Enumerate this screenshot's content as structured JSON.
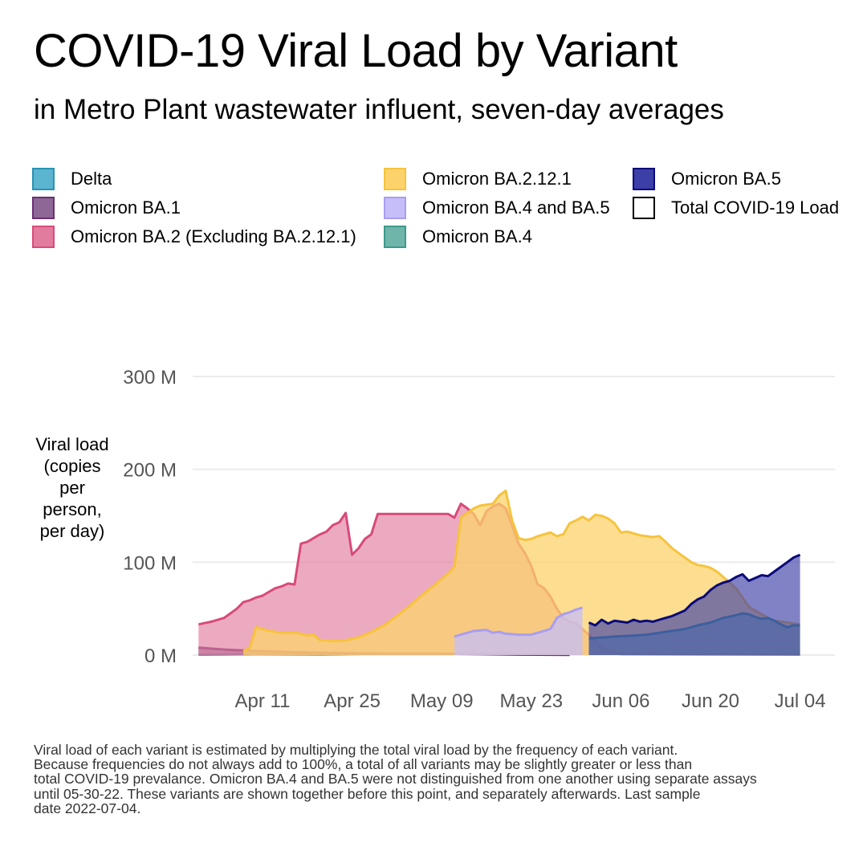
{
  "title": "COVID-19 Viral Load by Variant",
  "subtitle": "in Metro Plant wastewater influent, seven-day averages",
  "legend": [
    {
      "label": "Delta",
      "fill": "#5BB4D0",
      "stroke": "#2A93B4"
    },
    {
      "label": "Omicron BA.1",
      "fill": "#8E6796",
      "stroke": "#6A2F72"
    },
    {
      "label": "Omicron BA.2 (Excluding BA.2.12.1)",
      "fill": "#E27C9E",
      "stroke": "#D84A7A"
    },
    {
      "label": "Omicron BA.2.12.1",
      "fill": "#FCD36B",
      "stroke": "#F6C33D"
    },
    {
      "label": "Omicron BA.4 and BA.5",
      "fill": "#C6BEF8",
      "stroke": "#A99EF0"
    },
    {
      "label": "Omicron BA.4",
      "fill": "#70B5AA",
      "stroke": "#3C9A8B"
    },
    {
      "label": "Omicron BA.5",
      "fill": "#3D3FA8",
      "stroke": "#0A0A7A"
    },
    {
      "label": "Total COVID-19 Load",
      "fill": "#FFFFFF",
      "stroke": "#000000"
    }
  ],
  "y_axis_title": "Viral load\n(copies\nper\nperson,\nper day)",
  "footnote": "Viral load of each variant is estimated by multiplying the total viral load by the frequency of each variant.\nBecause frequencies do not always add to 100%, a total of all variants may be slightly greater or less than\ntotal COVID-19 prevalance. Omicron BA.4 and BA.5 were not distinguished from one another using separate assays\nuntil 05-30-22. These variants are shown together before this point, and separately afterwards. Last sample\ndate 2022-07-04.",
  "chart_data": {
    "type": "area",
    "ylabel": "Viral load\n(copies\nper\nperson,\nper day)",
    "xlabel": "",
    "x_ticks": [
      "Apr 11",
      "Apr 25",
      "May 09",
      "May 23",
      "Jun 06",
      "Jun 20",
      "Jul 04"
    ],
    "x_tick_dates": [
      "2022-04-11",
      "2022-04-25",
      "2022-05-09",
      "2022-05-23",
      "2022-06-06",
      "2022-06-20",
      "2022-07-04"
    ],
    "y_ticks": [
      0,
      100,
      200,
      300
    ],
    "y_tick_labels": [
      "0 M",
      "100 M",
      "200 M",
      "300 M"
    ],
    "ylim": [
      0,
      300
    ],
    "y_unit": "M",
    "grid": true,
    "legend_position": "top",
    "series": [
      {
        "name": "Delta",
        "fill": "#5BB4D0",
        "stroke": "#2A93B4",
        "opacity": 0.75,
        "points": [
          [
            "2022-04-01",
            0.5
          ],
          [
            "2022-04-10",
            1.0
          ],
          [
            "2022-04-20",
            0.8
          ],
          [
            "2022-04-29",
            1.5
          ]
        ]
      },
      {
        "name": "Omicron BA.1",
        "fill": "#8E6796",
        "stroke": "#6A2F72",
        "opacity": 0.75,
        "points": [
          [
            "2022-04-01",
            8
          ],
          [
            "2022-04-05",
            6
          ],
          [
            "2022-04-08",
            5
          ],
          [
            "2022-04-12",
            4
          ],
          [
            "2022-04-16",
            3
          ],
          [
            "2022-04-20",
            2.5
          ],
          [
            "2022-04-25",
            2
          ],
          [
            "2022-05-01",
            1.5
          ],
          [
            "2022-05-08",
            1.5
          ],
          [
            "2022-05-15",
            1
          ],
          [
            "2022-05-21",
            0.5
          ],
          [
            "2022-05-29",
            0.3
          ]
        ]
      },
      {
        "name": "Omicron BA.2 (Excluding BA.2.12.1)",
        "fill": "#E27C9E",
        "stroke": "#D84A7A",
        "opacity": 0.65,
        "points": [
          [
            "2022-04-01",
            33
          ],
          [
            "2022-04-03",
            36
          ],
          [
            "2022-04-05",
            40
          ],
          [
            "2022-04-06",
            45
          ],
          [
            "2022-04-07",
            50
          ],
          [
            "2022-04-08",
            57
          ],
          [
            "2022-04-09",
            59
          ],
          [
            "2022-04-10",
            62
          ],
          [
            "2022-04-11",
            64
          ],
          [
            "2022-04-12",
            68
          ],
          [
            "2022-04-13",
            72
          ],
          [
            "2022-04-14",
            74
          ],
          [
            "2022-04-15",
            77
          ],
          [
            "2022-04-16",
            76
          ],
          [
            "2022-04-17",
            120
          ],
          [
            "2022-04-18",
            122
          ],
          [
            "2022-04-20",
            130
          ],
          [
            "2022-04-21",
            133
          ],
          [
            "2022-04-22",
            140
          ],
          [
            "2022-04-23",
            143
          ],
          [
            "2022-04-24",
            153
          ],
          [
            "2022-04-25",
            108
          ],
          [
            "2022-04-26",
            115
          ],
          [
            "2022-04-27",
            125
          ],
          [
            "2022-04-28",
            130
          ],
          [
            "2022-04-29",
            152
          ],
          [
            "2022-05-10",
            152
          ],
          [
            "2022-05-11",
            148
          ],
          [
            "2022-05-12",
            163
          ],
          [
            "2022-05-13",
            158
          ],
          [
            "2022-05-14",
            152
          ],
          [
            "2022-05-15",
            140
          ],
          [
            "2022-05-16",
            155
          ],
          [
            "2022-05-17",
            160
          ],
          [
            "2022-05-18",
            163
          ],
          [
            "2022-05-19",
            158
          ],
          [
            "2022-05-20",
            140
          ],
          [
            "2022-05-21",
            120
          ],
          [
            "2022-05-22",
            110
          ],
          [
            "2022-05-23",
            96
          ],
          [
            "2022-05-24",
            76
          ],
          [
            "2022-05-25",
            72
          ],
          [
            "2022-05-26",
            63
          ],
          [
            "2022-05-27",
            50
          ],
          [
            "2022-05-28",
            40
          ],
          [
            "2022-05-29",
            36
          ],
          [
            "2022-05-30",
            34
          ],
          [
            "2022-05-31",
            28
          ],
          [
            "2022-06-01",
            22
          ],
          [
            "2022-06-02",
            15
          ],
          [
            "2022-06-03",
            8
          ],
          [
            "2022-06-04",
            5
          ],
          [
            "2022-06-05",
            2
          ],
          [
            "2022-06-06",
            1
          ],
          [
            "2022-07-04",
            0.5
          ]
        ]
      },
      {
        "name": "Omicron BA.2.12.1",
        "fill": "#FCD36B",
        "stroke": "#F6C33D",
        "opacity": 0.75,
        "points": [
          [
            "2022-04-08",
            4
          ],
          [
            "2022-04-09",
            8
          ],
          [
            "2022-04-10",
            30
          ],
          [
            "2022-04-11",
            28
          ],
          [
            "2022-04-12",
            26
          ],
          [
            "2022-04-14",
            24
          ],
          [
            "2022-04-16",
            24
          ],
          [
            "2022-04-17",
            23
          ],
          [
            "2022-04-18",
            21
          ],
          [
            "2022-04-19",
            22
          ],
          [
            "2022-04-20",
            16
          ],
          [
            "2022-04-22",
            15
          ],
          [
            "2022-04-24",
            16
          ],
          [
            "2022-04-26",
            19
          ],
          [
            "2022-04-28",
            25
          ],
          [
            "2022-04-30",
            32
          ],
          [
            "2022-05-02",
            42
          ],
          [
            "2022-05-04",
            53
          ],
          [
            "2022-05-06",
            65
          ],
          [
            "2022-05-08",
            76
          ],
          [
            "2022-05-10",
            88
          ],
          [
            "2022-05-11",
            95
          ],
          [
            "2022-05-12",
            148
          ],
          [
            "2022-05-14",
            158
          ],
          [
            "2022-05-15",
            161
          ],
          [
            "2022-05-17",
            163
          ],
          [
            "2022-05-18",
            172
          ],
          [
            "2022-05-19",
            177
          ],
          [
            "2022-05-20",
            145
          ],
          [
            "2022-05-21",
            126
          ],
          [
            "2022-05-22",
            124
          ],
          [
            "2022-05-23",
            125
          ],
          [
            "2022-05-24",
            128
          ],
          [
            "2022-05-25",
            130
          ],
          [
            "2022-05-26",
            132
          ],
          [
            "2022-05-27",
            128
          ],
          [
            "2022-05-28",
            130
          ],
          [
            "2022-05-29",
            142
          ],
          [
            "2022-05-30",
            145
          ],
          [
            "2022-05-31",
            149
          ],
          [
            "2022-06-01",
            145
          ],
          [
            "2022-06-02",
            151
          ],
          [
            "2022-06-03",
            150
          ],
          [
            "2022-06-04",
            147
          ],
          [
            "2022-06-05",
            142
          ],
          [
            "2022-06-06",
            132
          ],
          [
            "2022-06-07",
            133
          ],
          [
            "2022-06-08",
            131
          ],
          [
            "2022-06-09",
            129
          ],
          [
            "2022-06-10",
            128
          ],
          [
            "2022-06-11",
            127
          ],
          [
            "2022-06-12",
            128
          ],
          [
            "2022-06-13",
            122
          ],
          [
            "2022-06-14",
            115
          ],
          [
            "2022-06-15",
            110
          ],
          [
            "2022-06-16",
            105
          ],
          [
            "2022-06-17",
            100
          ],
          [
            "2022-06-18",
            97
          ],
          [
            "2022-06-19",
            96
          ],
          [
            "2022-06-20",
            94
          ],
          [
            "2022-06-21",
            90
          ],
          [
            "2022-06-22",
            84
          ],
          [
            "2022-06-23",
            78
          ],
          [
            "2022-06-24",
            72
          ],
          [
            "2022-06-25",
            62
          ],
          [
            "2022-06-26",
            52
          ],
          [
            "2022-06-27",
            48
          ],
          [
            "2022-06-28",
            44
          ],
          [
            "2022-06-29",
            40
          ],
          [
            "2022-06-30",
            37
          ],
          [
            "2022-07-01",
            36
          ],
          [
            "2022-07-02",
            35
          ],
          [
            "2022-07-04",
            33
          ]
        ]
      },
      {
        "name": "Omicron BA.4 and BA.5",
        "fill": "#C6BEF8",
        "stroke": "#A99EF0",
        "opacity": 0.75,
        "points": [
          [
            "2022-05-11",
            20
          ],
          [
            "2022-05-12",
            22
          ],
          [
            "2022-05-14",
            26
          ],
          [
            "2022-05-16",
            27
          ],
          [
            "2022-05-17",
            24
          ],
          [
            "2022-05-18",
            25
          ],
          [
            "2022-05-19",
            23
          ],
          [
            "2022-05-21",
            22
          ],
          [
            "2022-05-23",
            22
          ],
          [
            "2022-05-24",
            24
          ],
          [
            "2022-05-25",
            26
          ],
          [
            "2022-05-26",
            28
          ],
          [
            "2022-05-27",
            40
          ],
          [
            "2022-05-28",
            44
          ],
          [
            "2022-05-29",
            46
          ],
          [
            "2022-05-30",
            49
          ],
          [
            "2022-05-31",
            51
          ]
        ]
      },
      {
        "name": "Omicron BA.4",
        "fill": "#70B5AA",
        "stroke": "#3C9A8B",
        "opacity": 0.7,
        "points": [
          [
            "2022-06-01",
            18
          ],
          [
            "2022-06-05",
            20
          ],
          [
            "2022-06-08",
            21
          ],
          [
            "2022-06-10",
            22
          ],
          [
            "2022-06-12",
            24
          ],
          [
            "2022-06-14",
            26
          ],
          [
            "2022-06-16",
            28
          ],
          [
            "2022-06-18",
            32
          ],
          [
            "2022-06-20",
            35
          ],
          [
            "2022-06-22",
            40
          ],
          [
            "2022-06-24",
            43
          ],
          [
            "2022-06-25",
            45
          ],
          [
            "2022-06-26",
            44
          ],
          [
            "2022-06-27",
            41
          ],
          [
            "2022-06-28",
            39
          ],
          [
            "2022-06-29",
            40
          ],
          [
            "2022-06-30",
            37
          ],
          [
            "2022-07-01",
            33
          ],
          [
            "2022-07-02",
            30
          ],
          [
            "2022-07-03",
            32
          ],
          [
            "2022-07-04",
            32
          ]
        ]
      },
      {
        "name": "Omicron BA.5",
        "fill": "#3D3FA8",
        "stroke": "#0A0A7A",
        "opacity": 0.65,
        "points": [
          [
            "2022-06-01",
            35
          ],
          [
            "2022-06-02",
            32
          ],
          [
            "2022-06-03",
            38
          ],
          [
            "2022-06-04",
            34
          ],
          [
            "2022-06-05",
            37
          ],
          [
            "2022-06-06",
            36
          ],
          [
            "2022-06-07",
            35
          ],
          [
            "2022-06-08",
            38
          ],
          [
            "2022-06-09",
            36
          ],
          [
            "2022-06-10",
            37
          ],
          [
            "2022-06-11",
            36
          ],
          [
            "2022-06-12",
            38
          ],
          [
            "2022-06-13",
            40
          ],
          [
            "2022-06-14",
            42
          ],
          [
            "2022-06-15",
            45
          ],
          [
            "2022-06-16",
            48
          ],
          [
            "2022-06-17",
            55
          ],
          [
            "2022-06-18",
            60
          ],
          [
            "2022-06-19",
            63
          ],
          [
            "2022-06-20",
            70
          ],
          [
            "2022-06-21",
            75
          ],
          [
            "2022-06-22",
            78
          ],
          [
            "2022-06-23",
            80
          ],
          [
            "2022-06-24",
            84
          ],
          [
            "2022-06-25",
            87
          ],
          [
            "2022-06-26",
            80
          ],
          [
            "2022-06-27",
            83
          ],
          [
            "2022-06-28",
            86
          ],
          [
            "2022-06-29",
            85
          ],
          [
            "2022-06-30",
            90
          ],
          [
            "2022-07-01",
            95
          ],
          [
            "2022-07-02",
            100
          ],
          [
            "2022-07-03",
            105
          ],
          [
            "2022-07-04",
            108
          ]
        ]
      }
    ]
  }
}
